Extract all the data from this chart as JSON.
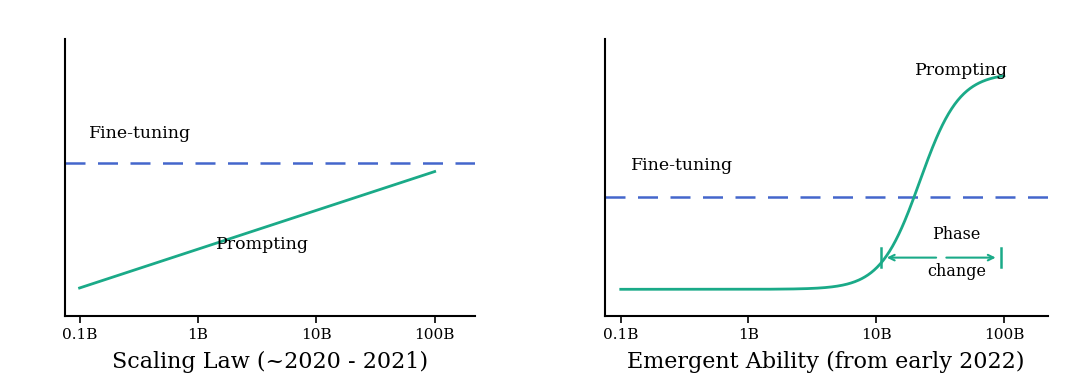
{
  "bg_color": "#ffffff",
  "title1": "Scaling Law (~2020 - 2021)",
  "title2": "Emergent Ability (from early 2022)",
  "xtick_labels": [
    "0.1B",
    "1B",
    "10B",
    "100B"
  ],
  "fine_tuning_color": "#4466cc",
  "prompting_color": "#1aaa88",
  "label_fontsize": 12.5,
  "title_fontsize": 16,
  "annotation_fontsize": 11.5,
  "tick_fontsize": 11
}
